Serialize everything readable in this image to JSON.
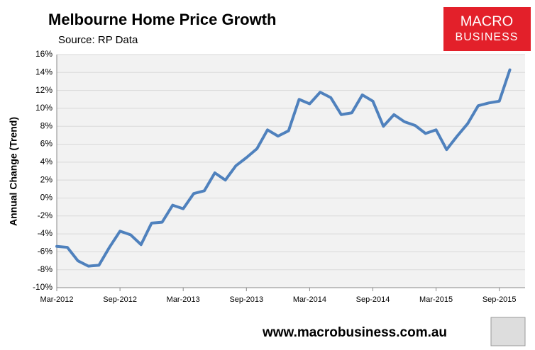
{
  "chart_data": {
    "type": "line",
    "title": "Melbourne Home Price Growth",
    "subtitle": "Source: RP Data",
    "ylabel": "Annual Change (Trend)",
    "x": [
      "Mar-2012",
      "Apr-2012",
      "May-2012",
      "Jun-2012",
      "Jul-2012",
      "Aug-2012",
      "Sep-2012",
      "Oct-2012",
      "Nov-2012",
      "Dec-2012",
      "Jan-2013",
      "Feb-2013",
      "Mar-2013",
      "Apr-2013",
      "May-2013",
      "Jun-2013",
      "Jul-2013",
      "Aug-2013",
      "Sep-2013",
      "Oct-2013",
      "Nov-2013",
      "Dec-2013",
      "Jan-2014",
      "Feb-2014",
      "Mar-2014",
      "Apr-2014",
      "May-2014",
      "Jun-2014",
      "Jul-2014",
      "Aug-2014",
      "Sep-2014",
      "Oct-2014",
      "Nov-2014",
      "Dec-2014",
      "Jan-2015",
      "Feb-2015",
      "Mar-2015",
      "Apr-2015",
      "May-2015",
      "Jun-2015",
      "Jul-2015",
      "Aug-2015",
      "Sep-2015",
      "Oct-2015"
    ],
    "series": [
      {
        "name": "Melbourne",
        "color": "#4f81bd",
        "values": [
          -5.4,
          -5.5,
          -7.0,
          -7.6,
          -7.5,
          -5.5,
          -3.7,
          -4.1,
          -5.2,
          -2.8,
          -2.7,
          -0.8,
          -1.2,
          0.5,
          0.8,
          2.8,
          2.0,
          3.6,
          4.5,
          5.5,
          7.6,
          6.9,
          7.5,
          11.0,
          10.5,
          11.8,
          11.2,
          9.3,
          9.5,
          11.5,
          10.8,
          8.0,
          9.3,
          8.5,
          8.1,
          7.2,
          7.6,
          5.4,
          6.9,
          8.3,
          10.3,
          10.6,
          10.8,
          14.3
        ]
      }
    ],
    "xticks": [
      "Mar-2012",
      "Sep-2012",
      "Mar-2013",
      "Sep-2013",
      "Mar-2014",
      "Sep-2014",
      "Mar-2015",
      "Sep-2015"
    ],
    "ylim": [
      -10,
      16
    ],
    "yticks": [
      {
        "value": -10,
        "label": "-10%"
      },
      {
        "value": -8,
        "label": "-8%"
      },
      {
        "value": -6,
        "label": "-6%"
      },
      {
        "value": -4,
        "label": "-4%"
      },
      {
        "value": -2,
        "label": "-2%"
      },
      {
        "value": 0,
        "label": "0%"
      },
      {
        "value": 2,
        "label": "2%"
      },
      {
        "value": 4,
        "label": "4%"
      },
      {
        "value": 6,
        "label": "6%"
      },
      {
        "value": 8,
        "label": "8%"
      },
      {
        "value": 10,
        "label": "10%"
      },
      {
        "value": 12,
        "label": "12%"
      },
      {
        "value": 14,
        "label": "14%"
      },
      {
        "value": 16,
        "label": "16%"
      }
    ],
    "grid": true
  },
  "logo": [
    "MACRO",
    "BUSINESS"
  ],
  "footer": "www.macrobusiness.com.au"
}
